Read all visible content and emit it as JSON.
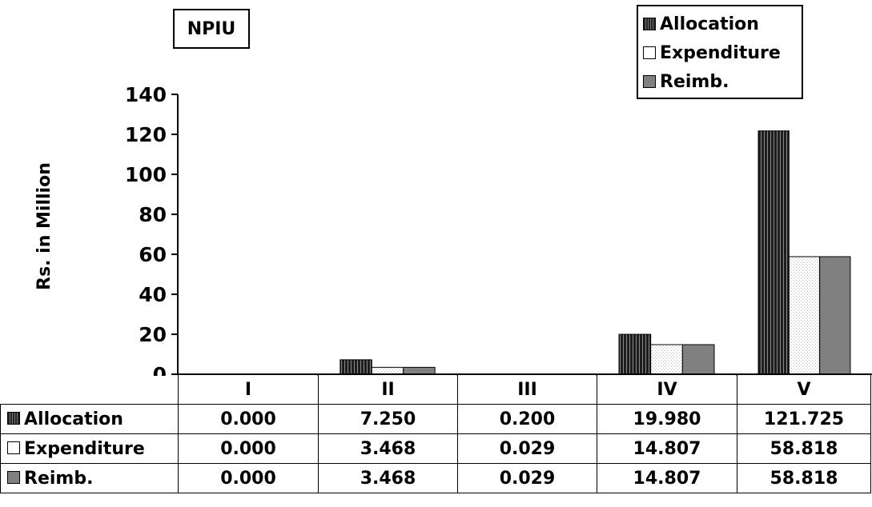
{
  "chart_data": {
    "type": "bar",
    "title": "NPIU",
    "ylabel": "Rs. in Million",
    "ylim": [
      0,
      140
    ],
    "yticks": [
      0,
      20,
      40,
      60,
      80,
      100,
      120,
      140
    ],
    "categories": [
      "I",
      "II",
      "III",
      "IV",
      "V"
    ],
    "series": [
      {
        "name": "Allocation",
        "values": [
          0,
          7.25,
          0.2,
          19.98,
          121.725
        ],
        "labels": [
          "0.000",
          "7.250",
          "0.200",
          "19.980",
          "121.725"
        ],
        "color": "#333333"
      },
      {
        "name": "Expenditure",
        "values": [
          0,
          3.468,
          0.029,
          14.807,
          58.818
        ],
        "labels": [
          "0.000",
          "3.468",
          "0.029",
          "14.807",
          "58.818"
        ],
        "color": "#ffffff"
      },
      {
        "name": "Reimb.",
        "values": [
          0,
          3.468,
          0.029,
          14.807,
          58.818
        ],
        "labels": [
          "0.000",
          "3.468",
          "0.029",
          "14.807",
          "58.818"
        ],
        "color": "#808080"
      }
    ],
    "legend_position": "top-right",
    "grid": false
  }
}
